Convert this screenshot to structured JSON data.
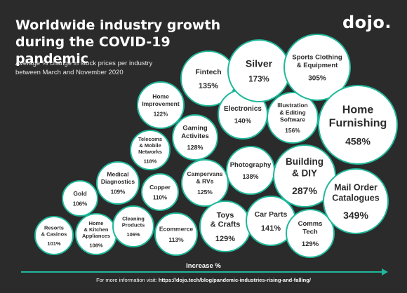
{
  "header": {
    "title_line1": "Worldwide industry growth",
    "title_line2": "during the COVID-19 pandemic",
    "subtitle_line1": "Average % change in stock prices per industry",
    "subtitle_line2": "between March and November 2020",
    "logo": "dojo."
  },
  "colors": {
    "background": "#2b2b2b",
    "bubble": "#ffffff",
    "ring": "#1fb89a",
    "text": "#2b2b2b"
  },
  "chart_data": {
    "type": "bubble",
    "x_label": "Increase %",
    "series": [
      {
        "label": "Resorts & Casinos",
        "lines": [
          "Resorts",
          "& Casinos"
        ],
        "value": "101%",
        "pct": 101
      },
      {
        "label": "Home & Kitchen Appliances",
        "lines": [
          "Home",
          "& Kitchen",
          "Appliances"
        ],
        "value": "108%",
        "pct": 108
      },
      {
        "label": "Gold",
        "lines": [
          "Gold"
        ],
        "value": "106%",
        "pct": 106
      },
      {
        "label": "Cleaning Products",
        "lines": [
          "Cleaning",
          "Products"
        ],
        "value": "106%",
        "pct": 106
      },
      {
        "label": "Medical Diagnostics",
        "lines": [
          "Medical",
          "Diagnostics"
        ],
        "value": "109%",
        "pct": 109
      },
      {
        "label": "Copper",
        "lines": [
          "Copper"
        ],
        "value": "110%",
        "pct": 110
      },
      {
        "label": "Telecoms & Mobile Networks",
        "lines": [
          "Telecoms",
          "& Mobile",
          "Networks"
        ],
        "value": "118%",
        "pct": 118
      },
      {
        "label": "Ecommerce",
        "lines": [
          "Ecommerce"
        ],
        "value": "113%",
        "pct": 113
      },
      {
        "label": "Home Improvement",
        "lines": [
          "Home",
          "Improvement"
        ],
        "value": "122%",
        "pct": 122
      },
      {
        "label": "Campervans & RVs",
        "lines": [
          "Campervans",
          "& RVs"
        ],
        "value": "125%",
        "pct": 125
      },
      {
        "label": "Gaming Activites",
        "lines": [
          "Gaming",
          "Activites"
        ],
        "value": "128%",
        "pct": 128
      },
      {
        "label": "Toys & Crafts",
        "lines": [
          "Toys",
          "& Crafts"
        ],
        "value": "129%",
        "pct": 129
      },
      {
        "label": "Fintech",
        "lines": [
          "Fintech"
        ],
        "value": "135%",
        "pct": 135
      },
      {
        "label": "Photography",
        "lines": [
          "Photography"
        ],
        "value": "138%",
        "pct": 138
      },
      {
        "label": "Electronics",
        "lines": [
          "Electronics"
        ],
        "value": "140%",
        "pct": 140
      },
      {
        "label": "Car Parts",
        "lines": [
          "Car Parts"
        ],
        "value": "141%",
        "pct": 141
      },
      {
        "label": "Comms Tech",
        "lines": [
          "Comms",
          "Tech"
        ],
        "value": "129%",
        "pct": 129
      },
      {
        "label": "Illustration & Editing Software",
        "lines": [
          "Illustration",
          "& Editing",
          "Software"
        ],
        "value": "156%",
        "pct": 156
      },
      {
        "label": "Silver",
        "lines": [
          "Silver"
        ],
        "value": "173%",
        "pct": 173
      },
      {
        "label": "Building & DIY",
        "lines": [
          "Building",
          "& DIY"
        ],
        "value": "287%",
        "pct": 287
      },
      {
        "label": "Sports Clothing & Equipment",
        "lines": [
          "Sports Clothing",
          "& Equipment"
        ],
        "value": "305%",
        "pct": 305
      },
      {
        "label": "Mail Order Catalogues",
        "lines": [
          "Mail Order",
          "Catalogues"
        ],
        "value": "349%",
        "pct": 349
      },
      {
        "label": "Home Furnishing",
        "lines": [
          "Home",
          "Furnishing"
        ],
        "value": "458%",
        "pct": 458
      }
    ]
  },
  "footer": {
    "prefix": "For more information visit: ",
    "link": "https://dojo.tech/blog/pandemic-industries-rising-and-falling/"
  }
}
